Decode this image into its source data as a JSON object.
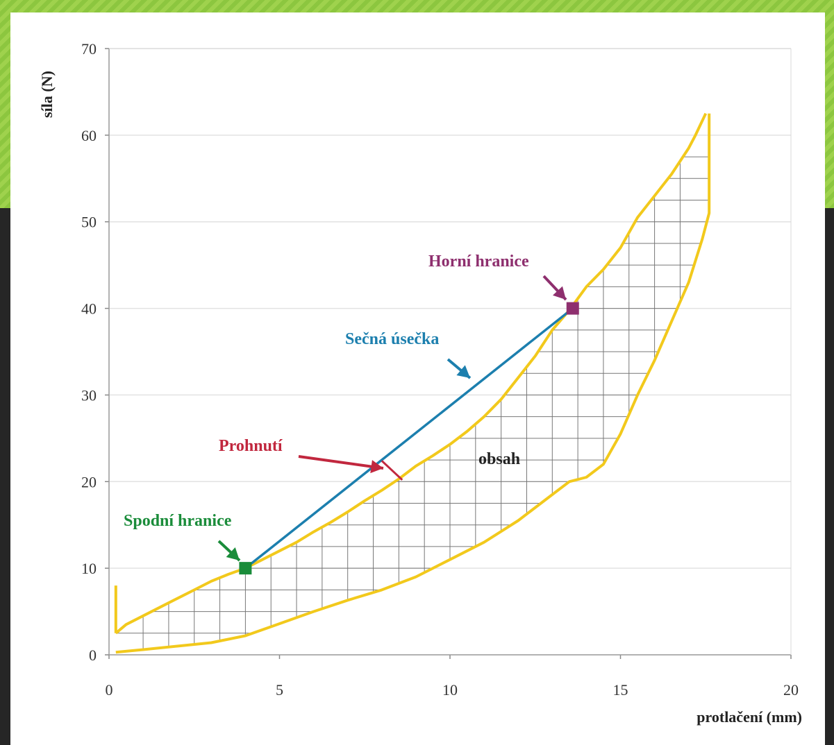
{
  "chart_data": {
    "type": "line",
    "title": "",
    "xlabel": "protlačení (mm)",
    "ylabel": "síla (N)",
    "xlim": [
      0,
      20
    ],
    "ylim": [
      0,
      70
    ],
    "x_ticks": [
      "0",
      "5",
      "10",
      "15",
      "20"
    ],
    "y_ticks": [
      "0",
      "10",
      "20",
      "30",
      "40",
      "50",
      "60",
      "70"
    ],
    "grid": "horizontal",
    "curve_color": "#f2c91c",
    "loading": {
      "x": [
        0.2,
        0.5,
        1,
        1.5,
        2,
        2.5,
        3,
        3.5,
        4,
        4.5,
        5,
        5.5,
        6,
        6.5,
        7,
        7.5,
        8,
        8.5,
        9,
        9.5,
        10,
        10.5,
        11,
        11.5,
        12,
        12.5,
        13,
        13.5,
        14,
        14.5,
        15,
        15.5,
        16,
        16.5,
        17,
        17.2,
        17.5
      ],
      "y": [
        2.5,
        3.5,
        4.5,
        5.5,
        6.5,
        7.5,
        8.5,
        9.3,
        10,
        11,
        12,
        13,
        14.2,
        15.3,
        16.5,
        17.8,
        19,
        20.3,
        21.8,
        23,
        24.3,
        25.8,
        27.5,
        29.5,
        32,
        34.5,
        37.5,
        39.8,
        42.5,
        44.5,
        47,
        50.5,
        53,
        55.5,
        58.5,
        60,
        62.5
      ]
    },
    "unloading": {
      "x": [
        17.6,
        17.6,
        17.4,
        17,
        16.5,
        16,
        15.5,
        15,
        14.5,
        14,
        13.5,
        13,
        12,
        11,
        10,
        9,
        8,
        7,
        6,
        5,
        4,
        3,
        2,
        1,
        0.2
      ],
      "y": [
        62.5,
        51,
        48,
        43,
        38.5,
        34,
        30,
        25.5,
        22,
        20.5,
        20,
        18.5,
        15.5,
        13,
        11,
        9,
        7.5,
        6.3,
        5,
        3.6,
        2.2,
        1.4,
        1,
        0.6,
        0.3
      ]
    },
    "secant": {
      "x": [
        4,
        13.6
      ],
      "y": [
        10,
        40
      ],
      "color": "#1c7fae"
    },
    "points": [
      {
        "name": "lower",
        "x": 4,
        "y": 10,
        "color": "#1a8c3a"
      },
      {
        "name": "upper",
        "x": 13.6,
        "y": 40,
        "color": "#8e2f6e"
      }
    ],
    "annotations": [
      {
        "text": "Horní hranice",
        "color": "#8e2f6e"
      },
      {
        "text": "Sečná úsečka",
        "color": "#1c7fae"
      },
      {
        "text": "Prohnutí",
        "color": "#c1273e"
      },
      {
        "text": "Spodní hranice",
        "color": "#1a8c3a"
      },
      {
        "text": "obsah",
        "color": "#222222"
      }
    ]
  }
}
